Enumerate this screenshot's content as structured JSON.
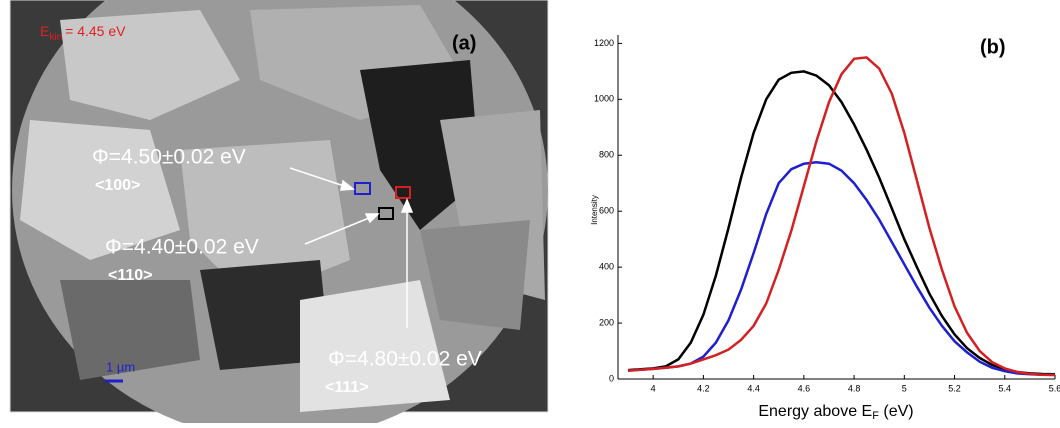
{
  "panel_a": {
    "energy_label": {
      "symbol": "E",
      "subscript": "kin",
      "text": "= 4.45  eV"
    },
    "panel_label": "(a)",
    "annotations": [
      {
        "work_function": "Φ=4.50±0.02 eV",
        "orientation": "<100>"
      },
      {
        "work_function": "Φ=4.40±0.02 eV",
        "orientation": "<110>"
      },
      {
        "work_function": "Φ=4.80±0.02 eV",
        "orientation": "<111>"
      }
    ],
    "scale_bar": "1 µm"
  },
  "chart_data": {
    "type": "line",
    "panel_label": "(b)",
    "y_label": "Intensity",
    "x_label": {
      "text": "Energy above E",
      "subscript": "F",
      "suffix": " (eV)"
    },
    "x": [
      3.9,
      3.95,
      4.0,
      4.05,
      4.1,
      4.15,
      4.2,
      4.25,
      4.3,
      4.35,
      4.4,
      4.45,
      4.5,
      4.55,
      4.6,
      4.65,
      4.7,
      4.75,
      4.8,
      4.85,
      4.9,
      4.95,
      5.0,
      5.05,
      5.1,
      5.15,
      5.2,
      5.25,
      5.3,
      5.35,
      5.4,
      5.45,
      5.5,
      5.55,
      5.6
    ],
    "series": [
      {
        "color": "#000000",
        "values": [
          32,
          35,
          38,
          45,
          70,
          130,
          230,
          370,
          540,
          720,
          880,
          1000,
          1070,
          1095,
          1100,
          1085,
          1050,
          990,
          910,
          820,
          720,
          610,
          500,
          400,
          305,
          225,
          160,
          110,
          75,
          50,
          35,
          25,
          20,
          18,
          17
        ]
      },
      {
        "color": "#1f1fd0",
        "values": [
          30,
          33,
          36,
          40,
          45,
          55,
          80,
          130,
          210,
          320,
          450,
          590,
          700,
          750,
          770,
          775,
          770,
          745,
          700,
          640,
          570,
          490,
          410,
          330,
          255,
          190,
          135,
          95,
          62,
          40,
          28,
          20,
          17,
          15,
          15
        ]
      },
      {
        "color": "#d42020",
        "values": [
          30,
          33,
          36,
          40,
          45,
          55,
          70,
          85,
          105,
          140,
          190,
          270,
          390,
          530,
          690,
          850,
          990,
          1090,
          1145,
          1150,
          1110,
          1020,
          880,
          710,
          540,
          390,
          260,
          165,
          100,
          60,
          38,
          25,
          18,
          15,
          14
        ]
      }
    ],
    "xlim": [
      3.86,
      5.6
    ],
    "ylim": [
      0,
      1230
    ],
    "xticks": [
      4,
      4.2,
      4.4,
      4.6,
      4.8,
      5,
      5.2,
      5.4,
      5.6
    ],
    "yticks": [
      0,
      200,
      400,
      600,
      800,
      1000,
      1200
    ]
  }
}
